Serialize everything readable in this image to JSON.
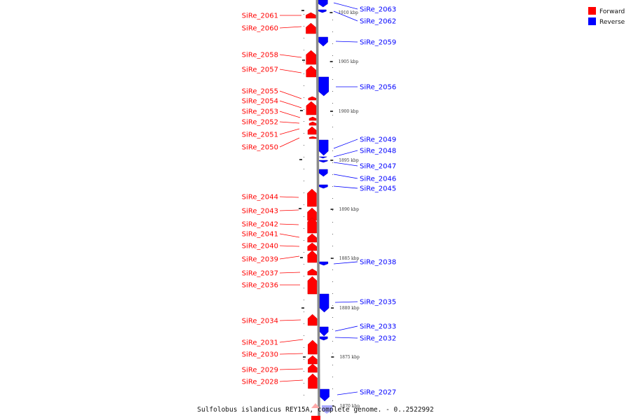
{
  "caption": "Sulfolobus islandicus REY15A, complete genome. - 0..2522992",
  "legend": [
    {
      "label": "Forward",
      "color": "#ff0000"
    },
    {
      "label": "Reverse",
      "color": "#0000ff"
    }
  ],
  "kbp_ticks": [
    "1910 kbp",
    "1905 kbp",
    "1900 kbp",
    "1895 kbp",
    "1890 kbp",
    "1885 kbp",
    "1880 kbp",
    "1875 kbp",
    "1870 kbp"
  ],
  "forward_genes": [
    "SiRe_2061",
    "SiRe_2060",
    "SiRe_2058",
    "SiRe_2057",
    "SiRe_2055",
    "SiRe_2054",
    "SiRe_2053",
    "SiRe_2052",
    "SiRe_2051",
    "SiRe_2050",
    "SiRe_2044",
    "SiRe_2043",
    "SiRe_2042",
    "SiRe_2041",
    "SiRe_2040",
    "SiRe_2039",
    "SiRe_2037",
    "SiRe_2036",
    "SiRe_2034",
    "SiRe_2031",
    "SiRe_2030",
    "SiRe_2029",
    "SiRe_2028"
  ],
  "reverse_genes": [
    "SiRe_2063",
    "SiRe_2062",
    "SiRe_2059",
    "SiRe_2056",
    "SiRe_2049",
    "SiRe_2048",
    "SiRe_2047",
    "SiRe_2046",
    "SiRe_2045",
    "SiRe_2038",
    "SiRe_2035",
    "SiRe_2033",
    "SiRe_2032",
    "SiRe_2027"
  ]
}
